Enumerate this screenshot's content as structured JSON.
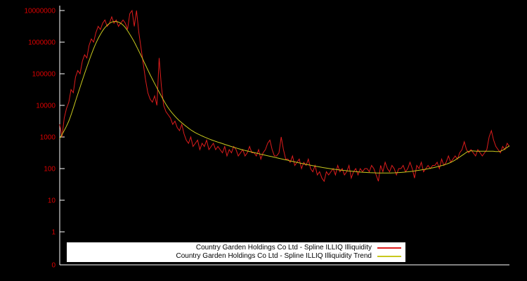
{
  "chart": {
    "background": "#000000",
    "axis_color": "#ffffff",
    "tick_label_color": "#dd0000",
    "y_tick_labels": [
      "10000000",
      "1000000",
      "100000",
      "10000",
      "1000",
      "100",
      "10",
      "1",
      "0"
    ],
    "legend": {
      "background": "#ffffff",
      "text_color": "#000000"
    }
  },
  "chart_data": {
    "type": "line",
    "title": "",
    "xlabel": "",
    "ylabel": "",
    "y_scale": "log10",
    "y_ticks": [
      10000000,
      1000000,
      100000,
      10000,
      1000,
      100,
      10,
      1,
      0
    ],
    "x_tick_labels": [],
    "legend_position": "bottom-center",
    "grid": false,
    "series": [
      {
        "name": "Country Garden Holdings Co Ltd - Spline ILLIQ Illiquidity",
        "color": "#dd1c1c",
        "x_range": [
          0,
          1
        ],
        "log10_values": [
          3.4,
          3.0,
          3.6,
          3.9,
          4.1,
          4.5,
          4.4,
          4.9,
          5.1,
          5.0,
          5.4,
          5.6,
          5.5,
          5.9,
          6.1,
          6.0,
          6.3,
          6.5,
          6.4,
          6.6,
          6.7,
          6.5,
          6.6,
          6.8,
          6.6,
          6.7,
          6.5,
          6.6,
          6.7,
          6.6,
          6.4,
          6.9,
          7.0,
          6.5,
          7.0,
          6.3,
          5.8,
          5.3,
          4.8,
          4.4,
          4.2,
          4.1,
          4.3,
          4.0,
          5.5,
          4.6,
          4.0,
          3.8,
          3.7,
          3.6,
          3.4,
          3.5,
          3.3,
          3.2,
          3.4,
          3.1,
          2.9,
          2.8,
          3.0,
          2.7,
          2.8,
          2.9,
          2.6,
          2.8,
          2.7,
          2.9,
          2.6,
          2.7,
          2.8,
          2.6,
          2.7,
          2.6,
          2.5,
          2.7,
          2.4,
          2.6,
          2.5,
          2.7,
          2.6,
          2.4,
          2.5,
          2.6,
          2.4,
          2.5,
          2.7,
          2.5,
          2.5,
          2.4,
          2.6,
          2.3,
          2.5,
          2.6,
          2.8,
          2.9,
          2.6,
          2.4,
          2.4,
          2.5,
          3.0,
          2.6,
          2.3,
          2.3,
          2.2,
          2.4,
          2.1,
          2.2,
          2.3,
          2.0,
          2.2,
          2.1,
          2.3,
          2.0,
          1.9,
          2.1,
          1.8,
          1.9,
          1.7,
          1.6,
          1.9,
          1.8,
          1.9,
          2.0,
          1.8,
          2.1,
          1.9,
          2.0,
          1.8,
          1.9,
          2.1,
          1.7,
          1.9,
          2.0,
          1.8,
          2.0,
          1.9,
          2.0,
          2.0,
          1.9,
          2.1,
          2.0,
          1.8,
          1.6,
          2.1,
          1.9,
          2.2,
          2.0,
          1.9,
          2.1,
          2.0,
          1.8,
          2.0,
          2.0,
          2.1,
          1.9,
          2.0,
          2.2,
          2.0,
          1.7,
          2.1,
          2.0,
          2.2,
          1.9,
          2.0,
          2.1,
          2.0,
          2.1,
          2.1,
          2.2,
          2.0,
          2.3,
          2.1,
          2.2,
          2.4,
          2.2,
          2.3,
          2.4,
          2.3,
          2.5,
          2.6,
          2.85,
          2.6,
          2.5,
          2.6,
          2.5,
          2.4,
          2.6,
          2.5,
          2.4,
          2.5,
          2.6,
          3.0,
          3.2,
          2.9,
          2.7,
          2.6,
          2.5,
          2.7,
          2.6,
          2.8,
          2.7
        ]
      },
      {
        "name": "Country Garden Holdings Co Ltd - Spline ILLIQ Illiquidity Trend",
        "color": "#c8c81e",
        "points": [
          [
            0.0,
            2.95
          ],
          [
            0.02,
            3.5
          ],
          [
            0.04,
            4.35
          ],
          [
            0.06,
            5.2
          ],
          [
            0.08,
            5.95
          ],
          [
            0.1,
            6.45
          ],
          [
            0.12,
            6.65
          ],
          [
            0.14,
            6.55
          ],
          [
            0.16,
            6.15
          ],
          [
            0.18,
            5.6
          ],
          [
            0.2,
            5.0
          ],
          [
            0.22,
            4.45
          ],
          [
            0.24,
            3.95
          ],
          [
            0.26,
            3.6
          ],
          [
            0.28,
            3.35
          ],
          [
            0.3,
            3.15
          ],
          [
            0.33,
            2.95
          ],
          [
            0.36,
            2.8
          ],
          [
            0.4,
            2.62
          ],
          [
            0.44,
            2.48
          ],
          [
            0.48,
            2.35
          ],
          [
            0.52,
            2.22
          ],
          [
            0.56,
            2.1
          ],
          [
            0.6,
            2.0
          ],
          [
            0.64,
            1.93
          ],
          [
            0.68,
            1.88
          ],
          [
            0.72,
            1.86
          ],
          [
            0.76,
            1.88
          ],
          [
            0.8,
            1.95
          ],
          [
            0.84,
            2.06
          ],
          [
            0.87,
            2.2
          ],
          [
            0.895,
            2.42
          ],
          [
            0.91,
            2.55
          ],
          [
            0.93,
            2.55
          ],
          [
            0.96,
            2.55
          ],
          [
            0.98,
            2.55
          ],
          [
            1.0,
            2.72
          ]
        ]
      }
    ]
  }
}
